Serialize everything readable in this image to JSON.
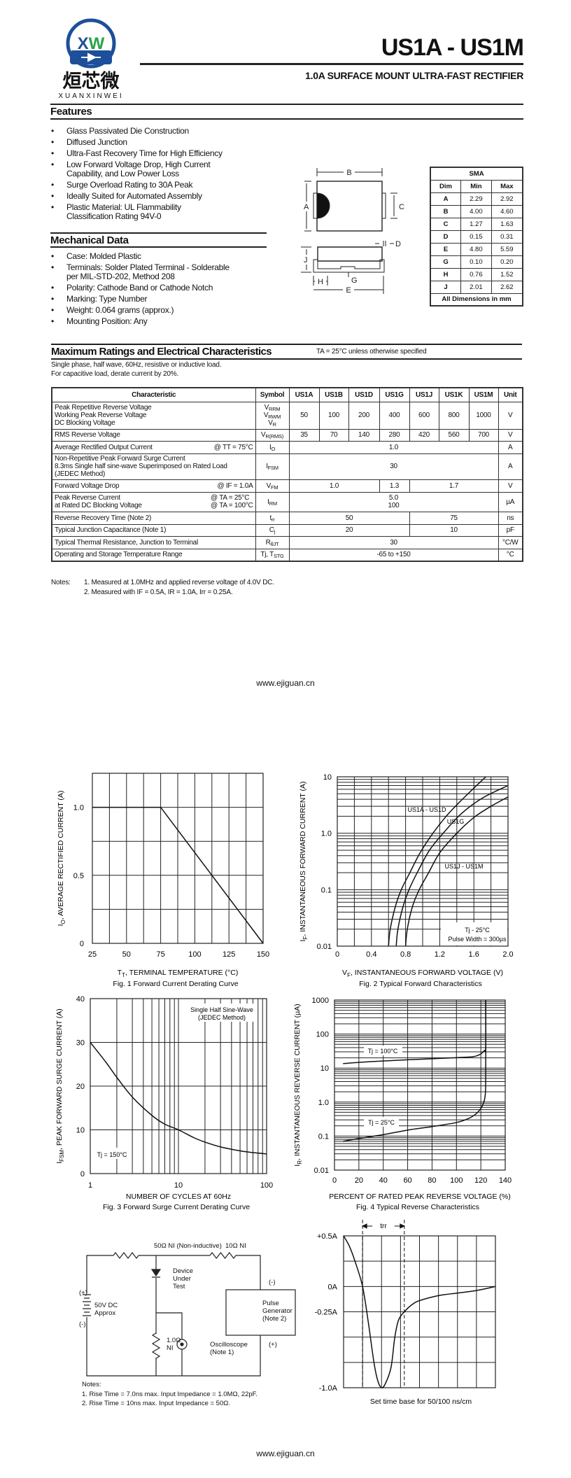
{
  "logo": {
    "letters": "XW",
    "chinese": "烜芯微",
    "brand": "XUANXINWEI",
    "color_blue": "#1e4f9a",
    "color_green": "#2aa24a"
  },
  "header": {
    "title": "US1A - US1M",
    "subtitle": "1.0A SURFACE MOUNT ULTRA-FAST RECTIFIER"
  },
  "features": {
    "heading": "Features",
    "items": [
      [
        "Glass Passivated Die Construction"
      ],
      [
        "Diffused Junction"
      ],
      [
        "Ultra-Fast Recovery Time for High Efficiency"
      ],
      [
        "Low Forward Voltage Drop, High Current",
        "Capability, and Low Power Loss"
      ],
      [
        "Surge Overload Rating to 30A Peak"
      ],
      [
        "Ideally Suited for Automated Assembly"
      ],
      [
        "Plastic Material: UL Flammability",
        "Classification Rating 94V-0"
      ]
    ]
  },
  "mechanical": {
    "heading": "Mechanical Data",
    "items": [
      [
        "Case: Molded Plastic"
      ],
      [
        "Terminals: Solder Plated Terminal - Solderable",
        "per MIL-STD-202, Method 208"
      ],
      [
        "Polarity: Cathode Band or Cathode Notch"
      ],
      [
        "Marking: Type Number"
      ],
      [
        "Weight: 0.064 grams (approx.)"
      ],
      [
        "Mounting Position: Any"
      ]
    ]
  },
  "package": {
    "labels": {
      "A": "A",
      "B": "B",
      "C": "C",
      "D": "D",
      "E": "E",
      "G": "G",
      "H": "H",
      "J": "J"
    }
  },
  "dimensions": {
    "title": "SMA",
    "headers": [
      "Dim",
      "Min",
      "Max"
    ],
    "rows": [
      [
        "A",
        "2.29",
        "2.92"
      ],
      [
        "B",
        "4.00",
        "4.60"
      ],
      [
        "C",
        "1.27",
        "1.63"
      ],
      [
        "D",
        "0.15",
        "0.31"
      ],
      [
        "E",
        "4.80",
        "5.59"
      ],
      [
        "G",
        "0.10",
        "0.20"
      ],
      [
        "H",
        "0.76",
        "1.52"
      ],
      [
        "J",
        "2.01",
        "2.62"
      ]
    ],
    "footer": "All Dimensions in mm"
  },
  "ratings": {
    "heading": "Maximum Ratings and Electrical Characteristics",
    "condition": "TA = 25°C unless otherwise specified",
    "notes_intro": [
      "Single phase, half wave, 60Hz, resistive or inductive load.",
      "For capacitive load, derate current by 20%."
    ],
    "headers": [
      "Characteristic",
      "Symbol",
      "US1A",
      "US1B",
      "US1D",
      "US1G",
      "US1J",
      "US1K",
      "US1M",
      "Unit"
    ],
    "rows": [
      {
        "char": [
          "Peak Repetitive Reverse Voltage",
          "Working Peak Reverse Voltage",
          "DC Blocking Voltage"
        ],
        "cond": [],
        "symbol": [
          [
            "V",
            "RRM"
          ],
          [
            "V",
            "RWM"
          ],
          [
            "V",
            "R"
          ]
        ],
        "values": [
          [
            "50",
            1
          ],
          [
            "100",
            1
          ],
          [
            "200",
            1
          ],
          [
            "400",
            1
          ],
          [
            "600",
            1
          ],
          [
            "800",
            1
          ],
          [
            "1000",
            1
          ]
        ],
        "unit": "V"
      },
      {
        "char": [
          "RMS Reverse Voltage"
        ],
        "cond": [],
        "symbol": [
          [
            "V",
            "R(RMS)"
          ]
        ],
        "values": [
          [
            "35",
            1
          ],
          [
            "70",
            1
          ],
          [
            "140",
            1
          ],
          [
            "280",
            1
          ],
          [
            "420",
            1
          ],
          [
            "560",
            1
          ],
          [
            "700",
            1
          ]
        ],
        "unit": "V"
      },
      {
        "char": [
          "Average Rectified Output Current"
        ],
        "cond": [
          "@ TT = 75°C"
        ],
        "symbol": [
          [
            "I",
            "O"
          ]
        ],
        "values": [
          [
            "1.0",
            7
          ]
        ],
        "unit": "A"
      },
      {
        "char": [
          "Non-Repetitive Peak Forward Surge Current",
          "8.3ms Single half sine-wave Superimposed on Rated Load",
          "(JEDEC Method)"
        ],
        "cond": [],
        "symbol": [
          [
            "I",
            "FSM"
          ]
        ],
        "values": [
          [
            "30",
            7
          ]
        ],
        "unit": "A"
      },
      {
        "char": [
          "Forward Voltage Drop"
        ],
        "cond": [
          "@ IF = 1.0A"
        ],
        "symbol": [
          [
            "V",
            "FM"
          ]
        ],
        "values": [
          [
            "1.0",
            3
          ],
          [
            "1.3",
            1
          ],
          [
            "1.7",
            3
          ]
        ],
        "unit": "V"
      },
      {
        "char": [
          "Peak Reverse Current",
          "at Rated DC Blocking Voltage"
        ],
        "cond": [
          "@ TA = 25°C",
          "@ TA = 100°C"
        ],
        "symbol": [
          [
            "I",
            "RM"
          ]
        ],
        "values": [
          [
            "5.0\n100",
            7
          ]
        ],
        "unit": "µA"
      },
      {
        "char": [
          "Reverse Recovery Time (Note 2)"
        ],
        "cond": [],
        "symbol": [
          [
            "t",
            "rr"
          ]
        ],
        "values": [
          [
            "50",
            4
          ],
          [
            "75",
            3
          ]
        ],
        "unit": "ns"
      },
      {
        "char": [
          "Typical Junction Capacitance (Note 1)"
        ],
        "cond": [],
        "symbol": [
          [
            "C",
            "j"
          ]
        ],
        "values": [
          [
            "20",
            4
          ],
          [
            "10",
            3
          ]
        ],
        "unit": "pF"
      },
      {
        "char": [
          "Typical Thermal Resistance, Junction to Terminal"
        ],
        "cond": [],
        "symbol": [
          [
            "R",
            "θJT"
          ]
        ],
        "values": [
          [
            "30",
            7
          ]
        ],
        "unit": "°C/W"
      },
      {
        "char": [
          "Operating and Storage Temperature Range"
        ],
        "cond": [],
        "symbol": [
          [
            "Tj, T",
            "STG"
          ]
        ],
        "values": [
          [
            "-65 to +150",
            7
          ]
        ],
        "unit": "°C"
      }
    ],
    "notes_label": "Notes:",
    "notes": [
      "1.  Measured at 1.0MHz and applied reverse voltage of 4.0V DC.",
      "2.  Measured with IF = 0.5A, IR = 1.0A, Irr = 0.25A."
    ]
  },
  "footer": {
    "url": "www.ejiguan.cn"
  },
  "chart_data": [
    {
      "type": "line",
      "caption": "Fig. 1  Forward Current Derating Curve",
      "xlabel": [
        {
          "t": "T"
        },
        {
          "t": "T",
          "sub": true
        },
        {
          "t": ", TERMINAL TEMPERATURE (°C)"
        }
      ],
      "ylabel": [
        {
          "t": "I"
        },
        {
          "t": "O",
          "sub": true
        },
        {
          "t": ", AVERAGE RECTIFIED CURRENT (A)"
        }
      ],
      "xlim": [
        25,
        150
      ],
      "ylim": [
        0,
        1.25
      ],
      "xscale": "linear",
      "yscale": "linear",
      "grid": true,
      "xticks": [
        25,
        50,
        75,
        100,
        125,
        150
      ],
      "xtick_labels": [
        "25",
        "50",
        "75",
        "100",
        "125",
        "150"
      ],
      "yticks": [
        0,
        0.5,
        1.0
      ],
      "ytick_labels": [
        "0",
        "0.5",
        "1.0"
      ],
      "series": [
        {
          "x": [
            25,
            75,
            150
          ],
          "y": [
            1.0,
            1.0,
            0
          ]
        }
      ],
      "annotations": []
    },
    {
      "type": "line",
      "caption": "Fig. 2  Typical Forward Characteristics",
      "xlabel": [
        {
          "t": "V"
        },
        {
          "t": "F",
          "sub": true
        },
        {
          "t": ", INSTANTANEOUS FORWARD VOLTAGE (V)"
        }
      ],
      "ylabel": [
        {
          "t": "I"
        },
        {
          "t": "F",
          "sub": true
        },
        {
          "t": ", INSTANTANEOUS FORWARD CURRENT (A)"
        }
      ],
      "xlim": [
        0,
        2.0
      ],
      "ylim": [
        0.01,
        10
      ],
      "xscale": "linear",
      "yscale": "log",
      "grid": true,
      "xticks": [
        0,
        0.4,
        0.8,
        1.2,
        1.6,
        2.0
      ],
      "xtick_labels": [
        "0",
        "0.4",
        "0.8",
        "1.2",
        "1.6",
        "2.0"
      ],
      "yticks": [
        0.01,
        0.1,
        1,
        10
      ],
      "ytick_labels": [
        "0.01",
        "0.1",
        "1.0",
        "10"
      ],
      "series": [
        {
          "name": "US1A - US1D",
          "x": [
            0.6,
            0.62,
            0.68,
            0.75,
            0.85,
            0.97,
            1.12,
            1.3,
            1.5,
            1.74
          ],
          "y": [
            0.01,
            0.02,
            0.05,
            0.1,
            0.2,
            0.45,
            1.0,
            2.2,
            4.5,
            10
          ]
        },
        {
          "name": "US1G",
          "x": [
            0.69,
            0.71,
            0.77,
            0.84,
            0.95,
            1.08,
            1.24,
            1.45,
            1.7,
            2.0
          ],
          "y": [
            0.01,
            0.02,
            0.05,
            0.1,
            0.22,
            0.5,
            1.0,
            2.2,
            4.2,
            7
          ]
        },
        {
          "name": "US1J - US1M",
          "x": [
            0.8,
            0.82,
            0.88,
            0.96,
            1.07,
            1.2,
            1.4,
            1.6,
            1.8,
            2.0
          ],
          "y": [
            0.01,
            0.02,
            0.05,
            0.1,
            0.2,
            0.45,
            1.0,
            1.9,
            3.0,
            4.4
          ]
        }
      ],
      "annotations": [
        {
          "text": "US1A - US1D"
        },
        {
          "text": "US1G"
        },
        {
          "text": "US1J - US1M"
        },
        {
          "text": "Tj - 25°C"
        },
        {
          "text": "Pulse Width = 300µs"
        }
      ]
    },
    {
      "type": "line",
      "caption": "Fig. 3  Forward Surge Current Derating Curve",
      "xlabel": [
        {
          "t": "NUMBER OF CYCLES AT 60Hz"
        }
      ],
      "ylabel": [
        {
          "t": "I"
        },
        {
          "t": "FSM",
          "sub": true
        },
        {
          "t": ", PEAK FORWARD SURGE CURRENT (A)"
        }
      ],
      "xlim": [
        1,
        100
      ],
      "ylim": [
        0,
        40
      ],
      "xscale": "log",
      "yscale": "linear",
      "grid": true,
      "xticks": [
        1,
        10,
        100
      ],
      "xtick_labels": [
        "1",
        "10",
        "100"
      ],
      "yticks": [
        0,
        10,
        20,
        30,
        40
      ],
      "ytick_labels": [
        "0",
        "10",
        "20",
        "30",
        "40"
      ],
      "series": [
        {
          "x": [
            1,
            1.5,
            2,
            3,
            5,
            7,
            10,
            15,
            20,
            30,
            50,
            70,
            100
          ],
          "y": [
            30,
            25.5,
            22,
            17.5,
            13.3,
            11.3,
            10,
            8.2,
            7.2,
            6.1,
            5.2,
            4.8,
            4.5
          ]
        }
      ],
      "annotations": [
        {
          "text": "Single Half Sine-Wave"
        },
        {
          "text": "(JEDEC Method)"
        },
        {
          "text": "Tj = 150°C"
        }
      ]
    },
    {
      "type": "line",
      "caption": "Fig. 4  Typical Reverse Characteristics",
      "xlabel": [
        {
          "t": "PERCENT OF RATED PEAK REVERSE VOLTAGE (%)"
        }
      ],
      "ylabel": [
        {
          "t": "I"
        },
        {
          "t": "R",
          "sub": true
        },
        {
          "t": ", INSTANTANEOUS REVERSE CURRENT (µA)"
        }
      ],
      "xlim": [
        0,
        140
      ],
      "ylim": [
        0.01,
        1000
      ],
      "xscale": "linear",
      "yscale": "log",
      "grid": true,
      "xticks": [
        0,
        20,
        40,
        60,
        80,
        100,
        120,
        140
      ],
      "xtick_labels": [
        "0",
        "20",
        "40",
        "60",
        "80",
        "100",
        "120",
        "140"
      ],
      "yticks": [
        0.01,
        0.1,
        1,
        10,
        100,
        1000
      ],
      "ytick_labels": [
        "0.01",
        "0.1",
        "1.0",
        "10",
        "100",
        "1000"
      ],
      "series": [
        {
          "name": "Tj = 100°C",
          "x": [
            7,
            30,
            60,
            90,
            110,
            116,
            120,
            123,
            124,
            124
          ],
          "y": [
            13.5,
            15.5,
            17.5,
            19.5,
            21,
            22.5,
            26,
            33,
            40,
            1000
          ]
        },
        {
          "name": "Tj = 25°C",
          "x": [
            7,
            20,
            40,
            60,
            80,
            100,
            110,
            116,
            120,
            122,
            123.5,
            124,
            124
          ],
          "y": [
            0.07,
            0.085,
            0.11,
            0.15,
            0.19,
            0.25,
            0.33,
            0.45,
            0.65,
            0.9,
            1.5,
            5,
            1000
          ]
        }
      ],
      "annotations": [
        {
          "text": "Tj = 100°C"
        },
        {
          "text": "Tj = 25°C"
        }
      ]
    },
    {
      "type": "line",
      "caption": "Set time base for 50/100 ns/cm",
      "xlim": [
        0,
        8
      ],
      "ylim": [
        -1.0,
        0.5
      ],
      "xscale": "linear",
      "yscale": "linear",
      "grid": true,
      "yticks": [
        0.5,
        0,
        -0.25,
        -1.0
      ],
      "ytick_labels": [
        "+0.5A",
        "0A",
        "-0.25A",
        "-1.0A"
      ],
      "trr_label": "trr",
      "trr_markers": [
        1.0,
        3.2
      ],
      "series": [
        {
          "x": [
            0,
            0.3,
            0.6,
            1.0,
            1.3,
            1.6,
            1.8,
            2.0,
            2.2,
            2.5,
            2.7,
            2.9,
            3.2,
            3.6,
            4.0,
            5.0,
            6.0,
            7.0,
            8.0
          ],
          "y": [
            0.5,
            0.4,
            0.25,
            0,
            -0.35,
            -0.75,
            -0.93,
            -1.0,
            -0.96,
            -0.8,
            -0.5,
            -0.33,
            -0.25,
            -0.18,
            -0.14,
            -0.09,
            -0.065,
            -0.04,
            0
          ]
        }
      ]
    }
  ],
  "circuit": {
    "r1": "50Ω NI (Non-inductive)",
    "r2": "10Ω NI",
    "dut": [
      "Device",
      "Under",
      "Test"
    ],
    "supply": [
      "50V DC",
      "Approx"
    ],
    "plus": "(+)",
    "minus": "(-)",
    "pulse": [
      "Pulse",
      "Generator",
      "(Note 2)"
    ],
    "r3": [
      "1.0Ω",
      "NI"
    ],
    "scope": [
      "Oscilloscope",
      "(Note 1)"
    ],
    "notes_label": "Notes:",
    "notes": [
      "1. Rise Time = 7.0ns max. Input Impedance = 1.0MΩ, 22pF.",
      "2. Rise Time = 10ns max. Input Impedance = 50Ω."
    ]
  }
}
